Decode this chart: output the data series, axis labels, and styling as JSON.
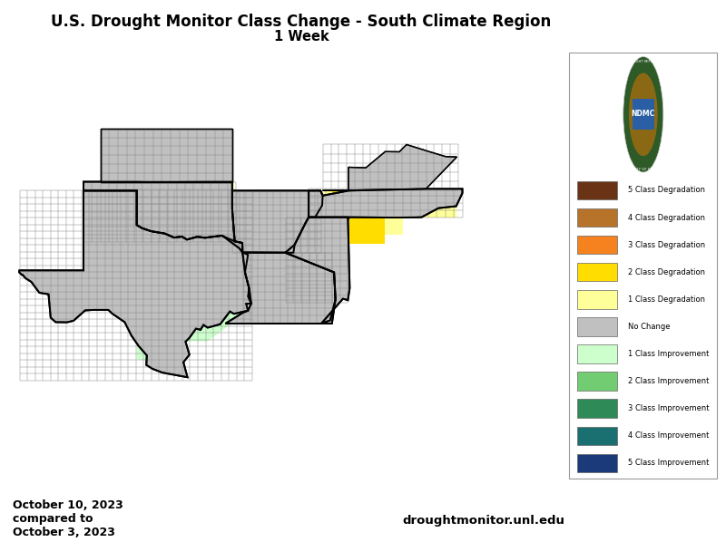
{
  "title_line1": "U.S. Drought Monitor Class Change - South Climate Region",
  "title_line2": "1 Week",
  "title_fontsize": 12.0,
  "subtitle_fontsize": 10.5,
  "date_text_line1": "October 10, 2023",
  "date_text_line2": "compared to",
  "date_text_line3": "October 3, 2023",
  "website_text": "droughtmonitor.unl.edu",
  "legend_entries": [
    {
      "label": "5 Class Degradation",
      "color": "#6B3316"
    },
    {
      "label": "4 Class Degradation",
      "color": "#B8732A"
    },
    {
      "label": "3 Class Degradation",
      "color": "#F5821F"
    },
    {
      "label": "2 Class Degradation",
      "color": "#FFDD00"
    },
    {
      "label": "1 Class Degradation",
      "color": "#FFFF99"
    },
    {
      "label": "No Change",
      "color": "#C0C0C0"
    },
    {
      "label": "1 Class Improvement",
      "color": "#CCFFCC"
    },
    {
      "label": "2 Class Improvement",
      "color": "#72CC72"
    },
    {
      "label": "3 Class Improvement",
      "color": "#2E8B57"
    },
    {
      "label": "4 Class Improvement",
      "color": "#1A7070"
    },
    {
      "label": "5 Class Improvement",
      "color": "#1A3A7A"
    }
  ],
  "ndmc_outer_color": "#2D5A27",
  "ndmc_inner_bg": "#F5A623",
  "background_color": "#FFFFFF",
  "fig_width": 8.0,
  "fig_height": 5.98,
  "states": {
    "TX": {
      "facecolor": "#C0C0C0"
    },
    "OK": {
      "facecolor": "#C0C0C0"
    },
    "KS": {
      "facecolor": "#C0C0C0"
    },
    "LA": {
      "facecolor": "#C0C0C0"
    },
    "AR": {
      "facecolor": "#C0C0C0"
    },
    "MS": {
      "facecolor": "#C0C0C0"
    },
    "TN": {
      "facecolor": "#C0C0C0"
    },
    "KY": {
      "facecolor": "#C0C0C0"
    }
  },
  "map_xlim": [
    -107.5,
    -76.0
  ],
  "map_ylim": [
    24.5,
    40.5
  ],
  "state_linewidth": 1.4,
  "county_linewidth": 0.35,
  "county_color": "#888888"
}
